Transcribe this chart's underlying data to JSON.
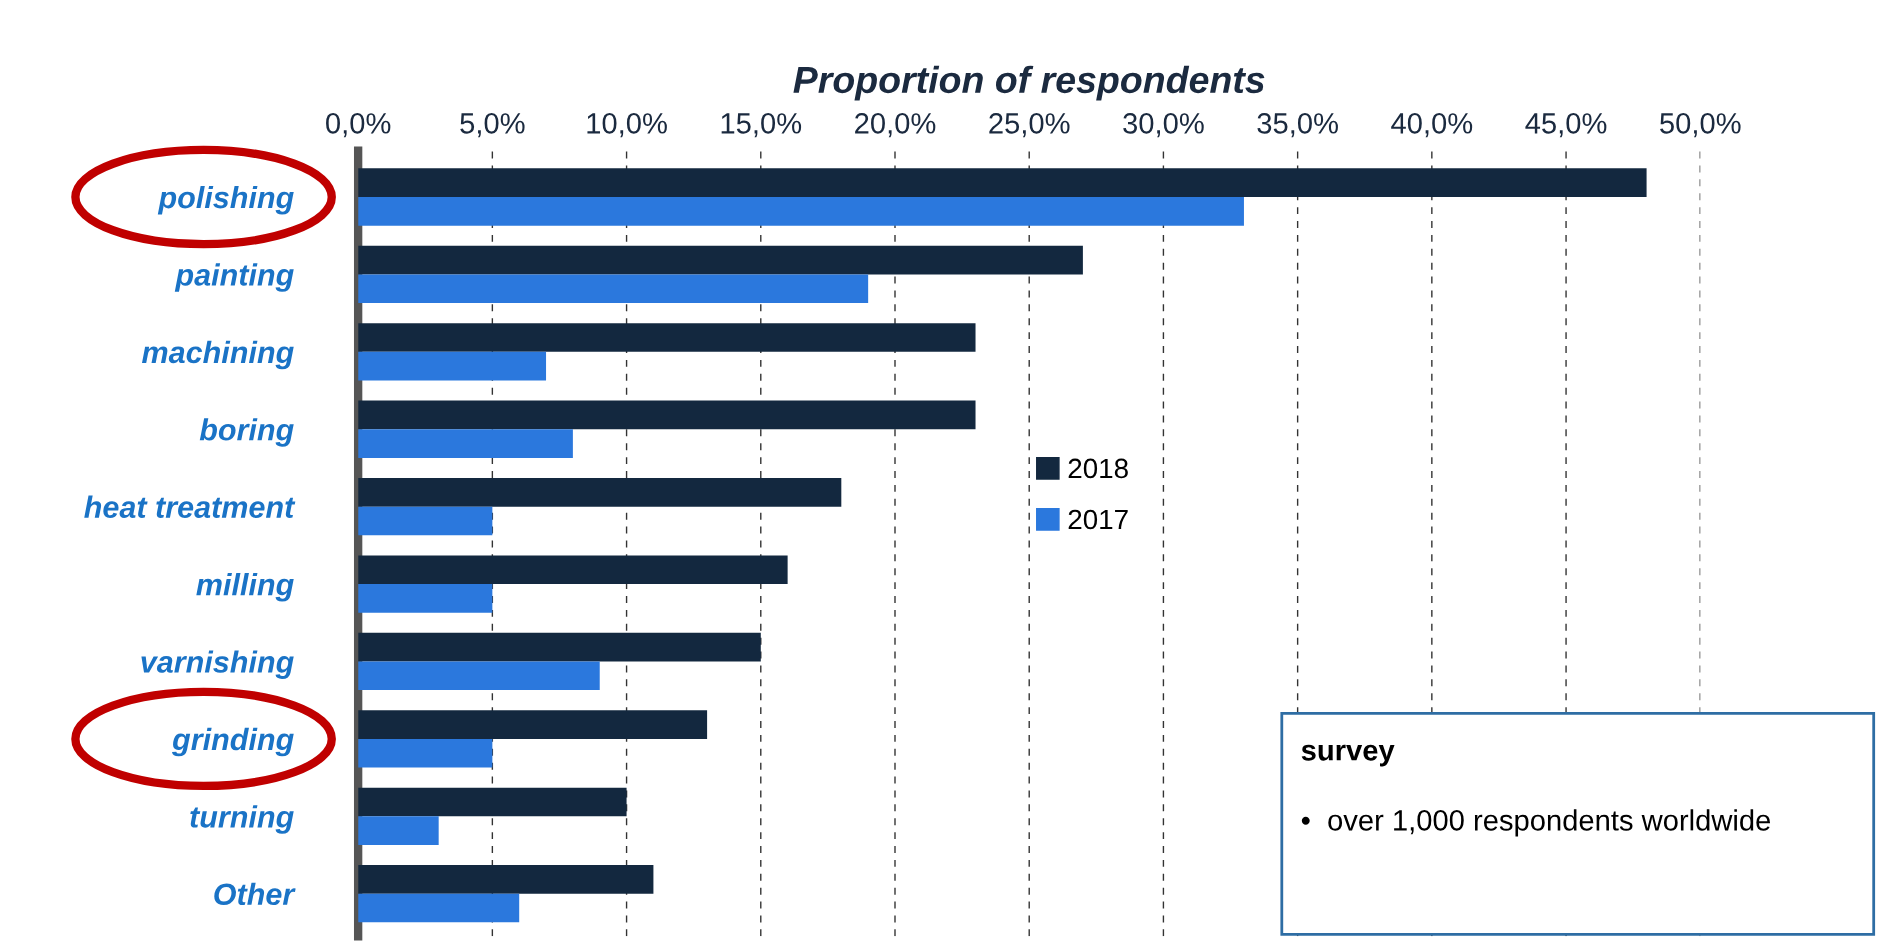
{
  "chart_data": {
    "type": "bar",
    "orientation": "horizontal",
    "xlabel": "Proportion of respondents",
    "categories": [
      "polishing",
      "painting",
      "machining",
      "boring",
      "heat treatment",
      "milling",
      "varnishing",
      "grinding",
      "turning",
      "Other"
    ],
    "series": [
      {
        "name": "2018",
        "color": "#13283f",
        "values": [
          48,
          27,
          23,
          23,
          18,
          16,
          15,
          13,
          10,
          11
        ]
      },
      {
        "name": "2017",
        "color": "#2b78dd",
        "values": [
          33,
          19,
          7,
          8,
          5,
          5,
          9,
          5,
          3,
          6
        ]
      }
    ],
    "xlim": [
      0,
      50
    ],
    "xticks": [
      {
        "value": 0,
        "label": "0,0%"
      },
      {
        "value": 5,
        "label": "5,0%"
      },
      {
        "value": 10,
        "label": "10,0%"
      },
      {
        "value": 15,
        "label": "15,0%"
      },
      {
        "value": 20,
        "label": "20,0%"
      },
      {
        "value": 25,
        "label": "25,0%"
      },
      {
        "value": 30,
        "label": "30,0%"
      },
      {
        "value": 35,
        "label": "35,0%"
      },
      {
        "value": 40,
        "label": "40,0%"
      },
      {
        "value": 45,
        "label": "45,0%"
      },
      {
        "value": 50,
        "label": "50,0%"
      }
    ],
    "grid": "x",
    "line_style": "dashed",
    "legend": "center",
    "annotations": [
      "survey",
      "•  over 1,000 respondents worldwide"
    ]
  }
}
